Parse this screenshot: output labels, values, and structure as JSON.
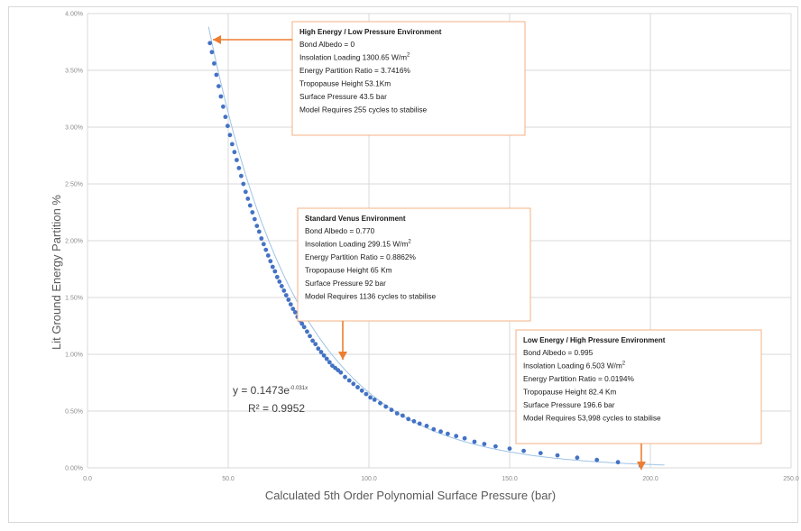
{
  "chart_data": {
    "type": "scatter",
    "xlabel": "Calculated 5th Order Polynomial Surface Pressure (bar)",
    "ylabel": "Lit Ground Energy Partition %",
    "xlim": [
      0,
      250
    ],
    "ylim": [
      0,
      4
    ],
    "x_ticks": [
      "0.0",
      "50.0",
      "100.0",
      "150.0",
      "200.0",
      "250.0"
    ],
    "y_ticks": [
      "0.00%",
      "0.50%",
      "1.00%",
      "1.50%",
      "2.00%",
      "2.50%",
      "3.00%",
      "3.50%",
      "4.00%"
    ],
    "grid": true,
    "trendline": {
      "label": "y = 0.1473e",
      "label_exp": "-0.031x",
      "r2_label": "R² = 0.9952",
      "a": 14.73,
      "b": -0.031
    },
    "series": [
      {
        "color": "#4472c4",
        "points": [
          [
            43.5,
            3.74
          ],
          [
            44.2,
            3.66
          ],
          [
            45.0,
            3.56
          ],
          [
            45.8,
            3.46
          ],
          [
            46.6,
            3.36
          ],
          [
            47.4,
            3.27
          ],
          [
            48.2,
            3.18
          ],
          [
            49.0,
            3.09
          ],
          [
            49.8,
            3.01
          ],
          [
            50.6,
            2.93
          ],
          [
            51.4,
            2.85
          ],
          [
            52.2,
            2.78
          ],
          [
            53.0,
            2.71
          ],
          [
            53.8,
            2.64
          ],
          [
            54.6,
            2.57
          ],
          [
            55.4,
            2.5
          ],
          [
            56.2,
            2.43
          ],
          [
            57.0,
            2.37
          ],
          [
            57.8,
            2.31
          ],
          [
            58.6,
            2.25
          ],
          [
            59.4,
            2.19
          ],
          [
            60.2,
            2.13
          ],
          [
            61.0,
            2.08
          ],
          [
            61.8,
            2.02
          ],
          [
            62.6,
            1.97
          ],
          [
            63.4,
            1.92
          ],
          [
            64.2,
            1.87
          ],
          [
            65.0,
            1.82
          ],
          [
            65.8,
            1.77
          ],
          [
            66.6,
            1.73
          ],
          [
            67.4,
            1.68
          ],
          [
            68.2,
            1.64
          ],
          [
            69.0,
            1.6
          ],
          [
            69.8,
            1.56
          ],
          [
            70.6,
            1.52
          ],
          [
            71.4,
            1.48
          ],
          [
            72.2,
            1.44
          ],
          [
            73.0,
            1.4
          ],
          [
            73.8,
            1.37
          ],
          [
            74.6,
            1.33
          ],
          [
            75.4,
            1.3
          ],
          [
            76.2,
            1.27
          ],
          [
            77.0,
            1.24
          ],
          [
            78.0,
            1.2
          ],
          [
            79.0,
            1.16
          ],
          [
            80.0,
            1.12
          ],
          [
            81.0,
            1.09
          ],
          [
            82.0,
            1.05
          ],
          [
            83.0,
            1.02
          ],
          [
            84.0,
            0.99
          ],
          [
            85.0,
            0.96
          ],
          [
            86.0,
            0.93
          ],
          [
            87.0,
            0.9
          ],
          [
            88.0,
            0.88
          ],
          [
            89.0,
            0.86
          ],
          [
            90.0,
            0.84
          ],
          [
            91.5,
            0.8
          ],
          [
            93.0,
            0.77
          ],
          [
            94.5,
            0.74
          ],
          [
            96.0,
            0.71
          ],
          [
            97.5,
            0.68
          ],
          [
            99.0,
            0.65
          ],
          [
            100.5,
            0.62
          ],
          [
            102.0,
            0.6
          ],
          [
            104.0,
            0.57
          ],
          [
            106.0,
            0.54
          ],
          [
            108.0,
            0.51
          ],
          [
            110.0,
            0.48
          ],
          [
            112.0,
            0.46
          ],
          [
            114.0,
            0.43
          ],
          [
            116.0,
            0.41
          ],
          [
            118.0,
            0.39
          ],
          [
            120.5,
            0.37
          ],
          [
            123.0,
            0.34
          ],
          [
            125.5,
            0.32
          ],
          [
            128.0,
            0.3
          ],
          [
            131.0,
            0.28
          ],
          [
            134.0,
            0.26
          ],
          [
            137.5,
            0.23
          ],
          [
            141.0,
            0.21
          ],
          [
            145.0,
            0.19
          ],
          [
            150.0,
            0.17
          ],
          [
            155.0,
            0.15
          ],
          [
            161.0,
            0.13
          ],
          [
            167.0,
            0.11
          ],
          [
            174.0,
            0.09
          ],
          [
            181.0,
            0.07
          ],
          [
            188.5,
            0.05
          ],
          [
            196.6,
            0.02
          ]
        ]
      }
    ],
    "annotations": [
      {
        "id": "high",
        "title": "High Energy / Low Pressure Environment",
        "lines": [
          {
            "text": "Bond Albedo = 0"
          },
          {
            "text": "Insolation Loading 1300.65 W/m",
            "sup": "2"
          },
          {
            "text": "Energy Partition Ratio = 3.7416%"
          },
          {
            "text": "Tropopause Height 53.1Km"
          },
          {
            "text": "Surface Pressure 43.5 bar"
          },
          {
            "text": "Model Requires 255 cycles to stabilise"
          }
        ]
      },
      {
        "id": "venus",
        "title": "Standard Venus Environment",
        "lines": [
          {
            "text": "Bond Albedo = 0.770"
          },
          {
            "text": "Insolation Loading 299.15 W/m",
            "sup": "2"
          },
          {
            "text": "Energy Partition Ratio = 0.8862%"
          },
          {
            "text": "Tropopause Height 65 Km"
          },
          {
            "text": "Surface Pressure 92 bar"
          },
          {
            "text": "Model Requires 1136 cycles to stabilise"
          }
        ]
      },
      {
        "id": "low",
        "title": "Low Energy / High Pressure Environment",
        "lines": [
          {
            "text": "Bond Albedo = 0.995"
          },
          {
            "text": "Insolation Loading 6.503 W/m",
            "sup": "2"
          },
          {
            "text": "Energy Partition Ratio = 0.0194%"
          },
          {
            "text": "Tropopause Height 82.4 Km"
          },
          {
            "text": "Surface Pressure 196.6 bar"
          },
          {
            "text": "Model Requires 53,998 cycles to stabilise"
          }
        ]
      }
    ],
    "colors": {
      "points": "#4472c4",
      "trendline": "#9dc3e6",
      "callout": "#ed7d31",
      "grid": "#d9d9d9"
    }
  }
}
